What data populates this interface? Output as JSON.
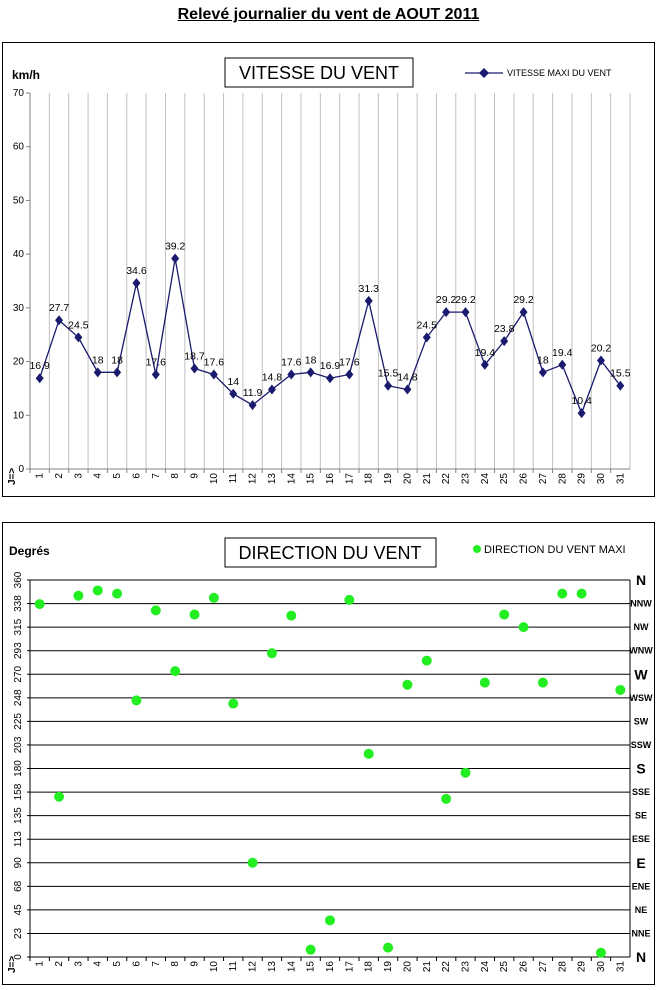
{
  "page_title": "Relevé journalier du vent de AOUT 2011",
  "chart_data": [
    {
      "type": "line",
      "title": "VITESSE DU VENT",
      "ylabel": "km/h",
      "x_axis_prefix": "J=>",
      "ylim": [
        0,
        70
      ],
      "yticks": [
        0,
        10,
        20,
        30,
        40,
        50,
        60,
        70
      ],
      "categories": [
        "1",
        "2",
        "3",
        "4",
        "5",
        "6",
        "7",
        "8",
        "9",
        "10",
        "11",
        "12",
        "13",
        "14",
        "15",
        "16",
        "17",
        "18",
        "19",
        "20",
        "21",
        "22",
        "23",
        "24",
        "25",
        "26",
        "27",
        "28",
        "29",
        "30",
        "31"
      ],
      "series": [
        {
          "name": "VITESSE MAXI DU VENT",
          "color": "#1a1a6e",
          "values": [
            16.9,
            27.7,
            24.5,
            18,
            18,
            34.6,
            17.6,
            39.2,
            18.7,
            17.6,
            14,
            11.9,
            14.8,
            17.6,
            18,
            16.9,
            17.6,
            31.3,
            15.5,
            14.8,
            24.5,
            29.2,
            29.2,
            19.4,
            23.8,
            29.2,
            18,
            19.4,
            10.4,
            20.2,
            15.5
          ]
        }
      ],
      "legend": "top-right",
      "grid": "vertical"
    },
    {
      "type": "scatter",
      "title": "DIRECTION DU VENT",
      "ylabel": "Degrés",
      "x_axis_prefix": "J=>",
      "ylim": [
        0,
        360
      ],
      "yticks": [
        0,
        23,
        45,
        68,
        90,
        113,
        135,
        158,
        180,
        203,
        225,
        248,
        270,
        293,
        315,
        338,
        360
      ],
      "compass_labels": [
        "N",
        "NNE",
        "NE",
        "ENE",
        "E",
        "ESE",
        "SE",
        "SSE",
        "S",
        "SSW",
        "SW",
        "WSW",
        "W",
        "WNW",
        "NW",
        "NNW",
        "N"
      ],
      "categories": [
        "1",
        "2",
        "3",
        "4",
        "5",
        "6",
        "7",
        "8",
        "9",
        "10",
        "11",
        "12",
        "13",
        "14",
        "15",
        "16",
        "17",
        "18",
        "19",
        "20",
        "21",
        "22",
        "23",
        "24",
        "25",
        "26",
        "27",
        "28",
        "29",
        "30",
        "31"
      ],
      "series": [
        {
          "name": "DIRECTION DU VENT MAXI",
          "color": "#22ee22",
          "values": [
            337,
            153,
            345,
            350,
            347,
            245,
            331,
            273,
            327,
            343,
            242,
            90,
            290,
            326,
            7,
            35,
            341,
            194,
            9,
            260,
            283,
            151,
            176,
            262,
            327,
            315,
            262,
            347,
            347,
            4,
            255
          ]
        }
      ],
      "legend": "top-right",
      "grid": "horizontal"
    }
  ]
}
